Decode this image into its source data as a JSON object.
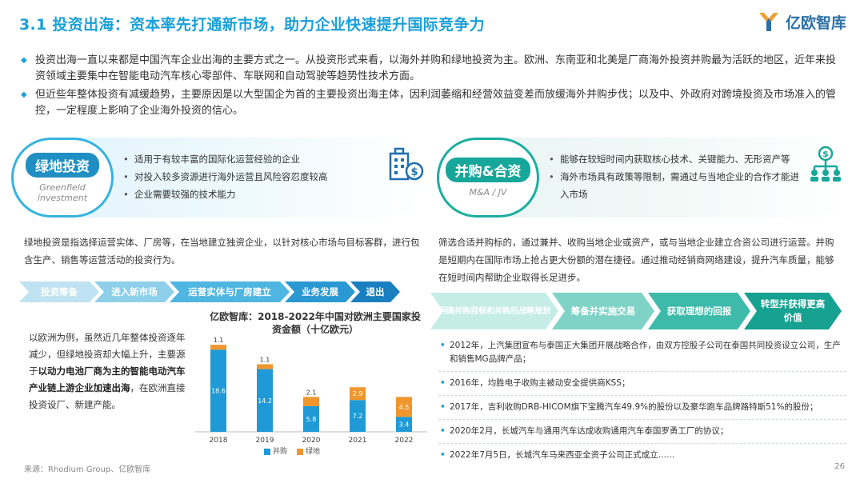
{
  "header": {
    "title": "3.1 投资出海：资本率先打通新市场，助力企业快速提升国际竞争力",
    "logo_text": "亿欧智库"
  },
  "intro": [
    "投资出海一直以来都是中国汽车企业出海的主要方式之一。从投资形式来看，以海外并购和绿地投资为主。欧洲、东南亚和北美是厂商海外投资并购最为活跃的地区，近年来投资领域主要集中在智能电动汽车核心零部件、车联网和自动驾驶等趋势性技术方面。",
    "但近些年整体投资有减缓趋势，主要原因是以大型国企为首的主要投资出海主体，因利润萎缩和经营效益变差而放缓海外并购步伐；以及中、外政府对跨境投资及市场准入的管控，一定程度上影响了企业海外投资的信心。"
  ],
  "greenfield": {
    "name_cn": "绿地投资",
    "name_en": "Greenfield investment",
    "features": [
      "适用于有较丰富的国际化运营经验的企业",
      "对投入较多资源进行海外运营且风险容忍度较高",
      "企业需要较强的技术能力"
    ],
    "icon": "building-dollar-icon",
    "description": "绿地投资是指选择运营实体、厂房等，在当地建立独资企业，以针对核心市场与目标客群，进行包含生产、销售等运营活动的投资行为。",
    "process": [
      "投资筹备",
      "进入新市场",
      "运营实体与厂房建立",
      "业务发展",
      "退出"
    ],
    "case_text_plain": "以欧洲为例，虽然近几年整体投资逐年减少，但绿地投资却大幅上升，主要源于",
    "case_text_bold": "以动力电池厂商为主的智能电动汽车产业链上游企业加速出海",
    "case_text_tail": "，在欧洲直接投资设厂、新建产能。"
  },
  "ma": {
    "name_cn": "并购&合资",
    "name_en": "M&A / JV",
    "features": [
      "能够在较短时间内获取核心技术、关键能力、无形资产等",
      "海外市场具有政策等限制，需通过与当地企业的合作才能进入市场"
    ],
    "icon": "org-network-dollar-icon",
    "description": "筛选合适并购标的，通过兼并、收购当地企业或资产，或与当地企业建立合资公司进行运营。并购是短期内在国际市场上抢占更大份额的潜在捷径。通过推动经销商网络建设，提升汽车质量，能够在短时间内帮助企业取得长足进步。",
    "process": [
      "明确并购目标和并购后战略规划",
      "筹备并实施交易",
      "获取理想的回报",
      "转型并获得更高价值"
    ],
    "events": [
      "2012年，上汽集团宣布与泰国正大集团开展战略合作，由双方控股子公司在泰国共同投资设立公司，生产和销售MG品牌产品；",
      "2016年，均胜电子收购主被动安全提供商KSS；",
      "2017年，吉利收购DRB-HICOM旗下宝腾汽车49.9%的股份以及豪华跑车品牌路特斯51%的股份；",
      "2020年2月，长城汽车与通用汽车达成收购通用汽车泰国罗勇工厂的协议；",
      "2022年7月5日，长城汽车马来西亚全资子公司正式成立……"
    ]
  },
  "chart_data": {
    "type": "bar",
    "title": "亿欧智库：2018-2022年中国对欧洲主要国家投资金额（十亿欧元）",
    "categories": [
      "2018",
      "2019",
      "2020",
      "2021",
      "2022"
    ],
    "series": [
      {
        "name": "并购",
        "values": [
          18.6,
          14.2,
          5.8,
          7.2,
          3.4
        ],
        "color": "#1f9ad6"
      },
      {
        "name": "绿地",
        "values": [
          1.1,
          1.1,
          2.1,
          2.9,
          4.5
        ],
        "color": "#f0962e"
      }
    ],
    "stacked": true,
    "ylim": [
      0,
      21
    ]
  },
  "footer": {
    "source": "来源：Rhodium Group、亿欧智库",
    "page": "26"
  }
}
